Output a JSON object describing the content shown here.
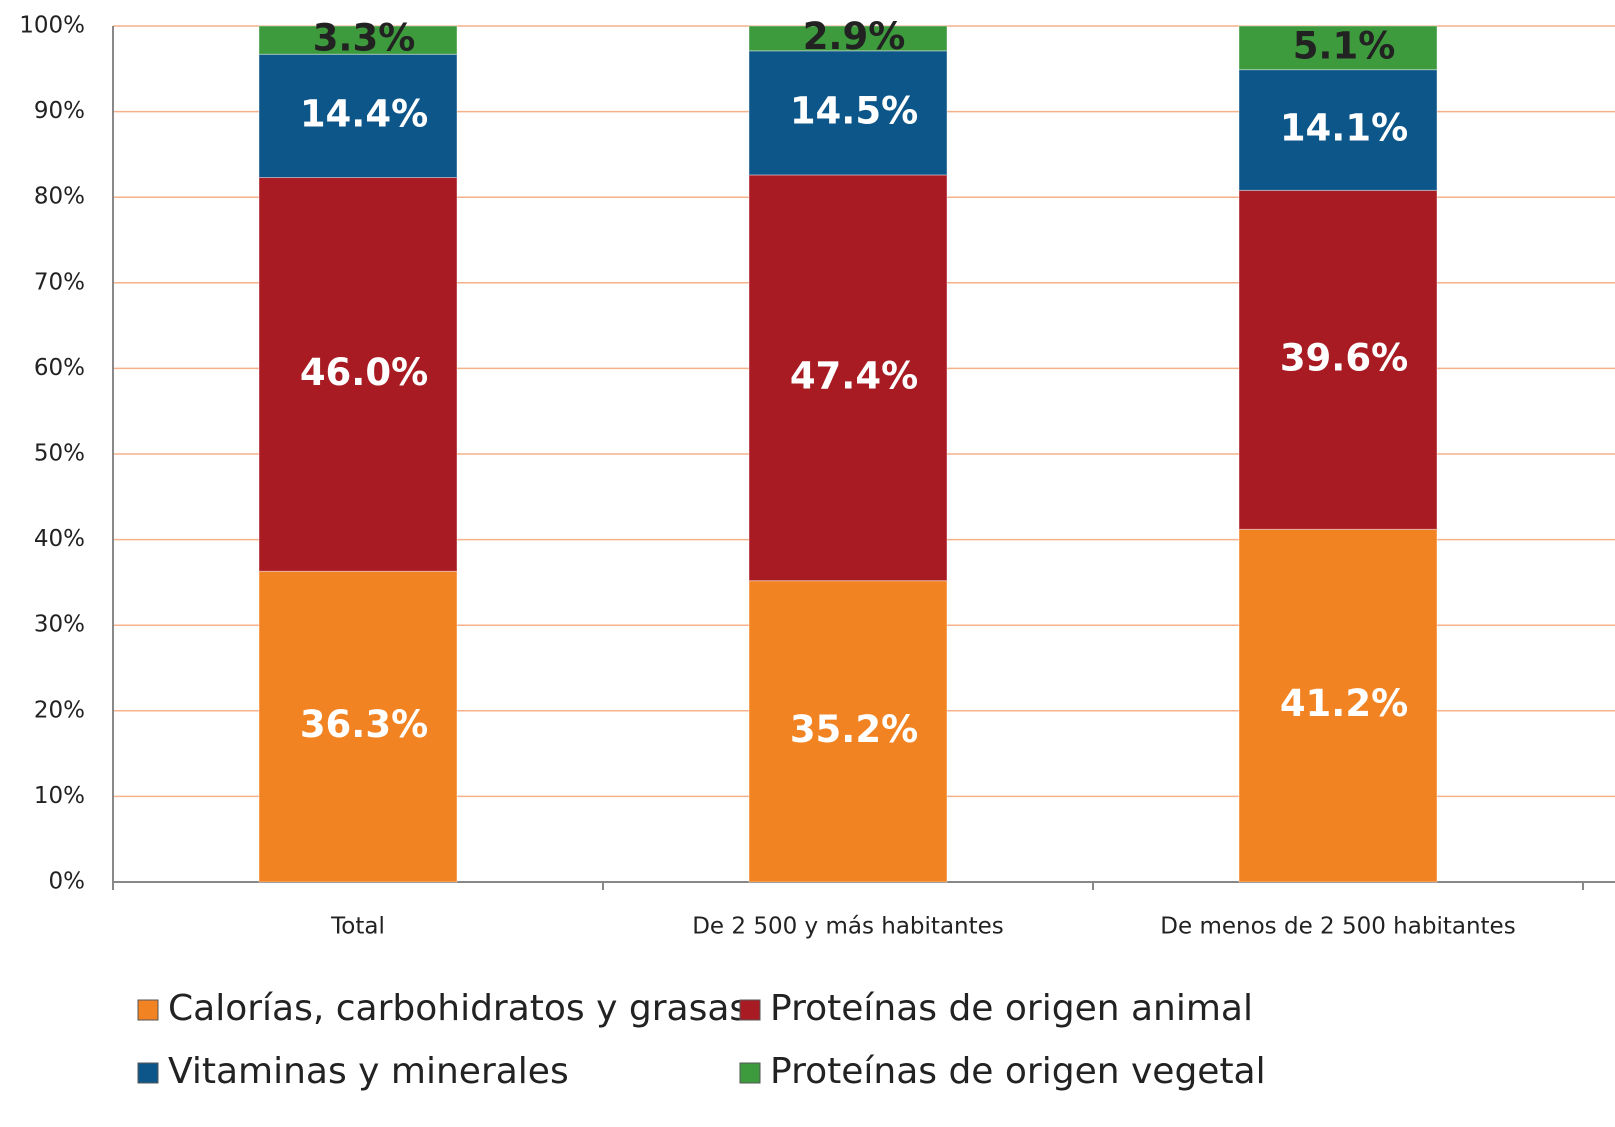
{
  "chart_data": {
    "type": "stacked_bar",
    "categories": [
      "Total",
      "De 2 500 y más habitantes",
      "De menos de 2 500 habitantes"
    ],
    "series": [
      {
        "name": "Calorías, carbohidratos y grasas",
        "color": "#f28323",
        "label_color": "#ffffff",
        "values": [
          36.3,
          35.2,
          41.2
        ],
        "value_labels": [
          "36.3%",
          "35.2%",
          "41.2%"
        ]
      },
      {
        "name": "Proteínas de origen animal",
        "color": "#a81b22",
        "label_color": "#ffffff",
        "values": [
          46.0,
          47.4,
          39.6
        ],
        "value_labels": [
          "46.0%",
          "47.4%",
          "39.6%"
        ]
      },
      {
        "name": "Vitaminas y minerales",
        "color": "#0d5689",
        "label_color": "#ffffff",
        "values": [
          14.4,
          14.5,
          14.1
        ],
        "value_labels": [
          "14.4%",
          "14.5%",
          "14.1%"
        ]
      },
      {
        "name": "Proteínas de origen vegetal",
        "color": "#3d9a3d",
        "label_color": "#222222",
        "values": [
          3.3,
          2.9,
          5.1
        ],
        "value_labels": [
          "3.3%",
          "2.9%",
          "5.1%"
        ]
      }
    ],
    "ylim": [
      0,
      100
    ],
    "yticks": [
      {
        "value": 0,
        "label": "0%"
      },
      {
        "value": 10,
        "label": "10%"
      },
      {
        "value": 20,
        "label": "20%"
      },
      {
        "value": 30,
        "label": "30%"
      },
      {
        "value": 40,
        "label": "40%"
      },
      {
        "value": 50,
        "label": "50%"
      },
      {
        "value": 60,
        "label": "60%"
      },
      {
        "value": 70,
        "label": "70%"
      },
      {
        "value": 80,
        "label": "80%"
      },
      {
        "value": 90,
        "label": "90%"
      },
      {
        "value": 100,
        "label": "100%"
      }
    ],
    "grid": true,
    "grid_color": "#f6b08a",
    "legend": "bottom"
  }
}
